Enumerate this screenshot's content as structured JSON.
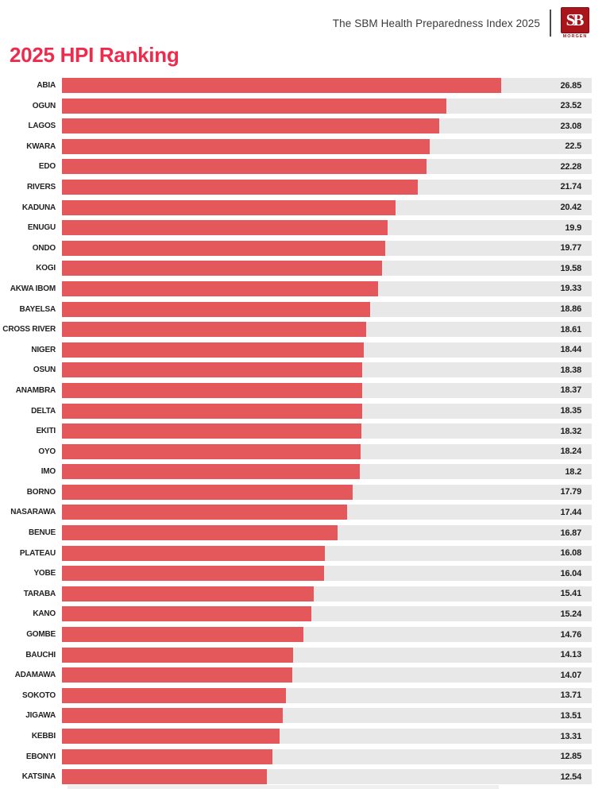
{
  "header": {
    "title": "The SBM Health Preparedness Index 2025",
    "logo": {
      "initials": "SB",
      "subtext": "MORGEN"
    }
  },
  "page": {
    "title": "2025 HPI Ranking"
  },
  "colors": {
    "accent_title": "#ee2b4d",
    "bar": "#e4575b",
    "track": "#e9e8e8",
    "logo_red": "#a8151b",
    "header_text": "#3b3b3b"
  },
  "chart_data": {
    "type": "bar",
    "orientation": "horizontal",
    "title": "2025 HPI Ranking",
    "xlabel": "",
    "ylabel": "",
    "axis_max": 32.4,
    "grid": false,
    "legend": false,
    "categories": [
      "ABIA",
      "OGUN",
      "LAGOS",
      "KWARA",
      "EDO",
      "RIVERS",
      "KADUNA",
      "ENUGU",
      "ONDO",
      "KOGI",
      "AKWA IBOM",
      "BAYELSA",
      "CROSS RIVER",
      "NIGER",
      "OSUN",
      "ANAMBRA",
      "DELTA",
      "EKITI",
      "OYO",
      "IMO",
      "BORNO",
      "NASARAWA",
      "BENUE",
      "PLATEAU",
      "YOBE",
      "TARABA",
      "KANO",
      "GOMBE",
      "BAUCHI",
      "ADAMAWA",
      "SOKOTO",
      "JIGAWA",
      "KEBBI",
      "EBONYI",
      "KATSINA"
    ],
    "values": [
      26.85,
      23.52,
      23.08,
      22.5,
      22.28,
      21.74,
      20.42,
      19.9,
      19.77,
      19.58,
      19.33,
      18.86,
      18.61,
      18.44,
      18.38,
      18.37,
      18.35,
      18.32,
      18.24,
      18.2,
      17.79,
      17.44,
      16.87,
      16.08,
      16.04,
      15.41,
      15.24,
      14.76,
      14.13,
      14.07,
      13.71,
      13.51,
      13.31,
      12.85,
      12.54
    ],
    "value_labels": [
      "26.85",
      "23.52",
      "23.08",
      "22.5",
      "22.28",
      "21.74",
      "20.42",
      "19.9",
      "19.77",
      "19.58",
      "19.33",
      "18.86",
      "18.61",
      "18.44",
      "18.38",
      "18.37",
      "18.35",
      "18.32",
      "18.24",
      "18.2",
      "17.79",
      "17.44",
      "16.87",
      "16.08",
      "16.04",
      "15.41",
      "15.24",
      "14.76",
      "14.13",
      "14.07",
      "13.71",
      "13.51",
      "13.31",
      "12.85",
      "12.54"
    ]
  }
}
